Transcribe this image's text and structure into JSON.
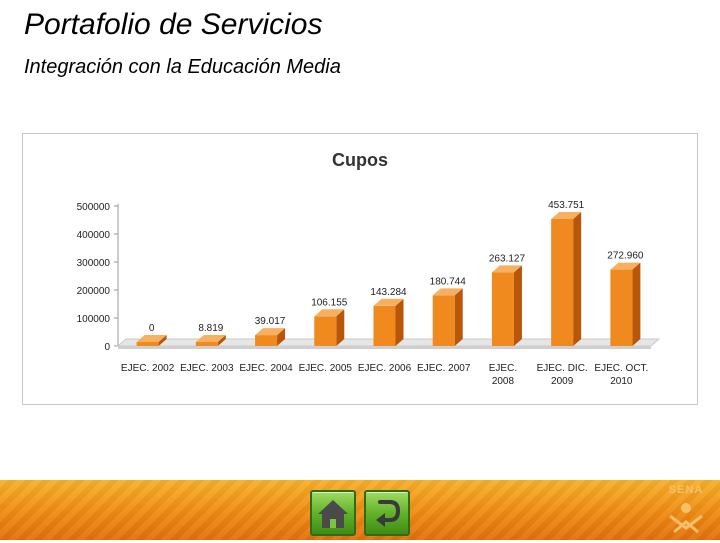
{
  "slide": {
    "title": "Portafolio de Servicios",
    "subtitle": "Integración con la Educación Media"
  },
  "logo": {
    "text": "SENA"
  },
  "colors": {
    "bar": "#f08a1e",
    "bar_dark": "#b8560a",
    "bar_top": "#f7b060",
    "footer": "#ef8a12",
    "button": "#63b22a"
  },
  "chart_data": {
    "type": "bar",
    "title": "Cupos",
    "xlabel": "",
    "ylabel": "",
    "ylim": [
      0,
      500000
    ],
    "yticks": [
      "0",
      "100000",
      "200000",
      "300000",
      "400000",
      "500000"
    ],
    "categories": [
      [
        "EJEC. 2002"
      ],
      [
        "EJEC. 2003"
      ],
      [
        "EJEC. 2004"
      ],
      [
        "EJEC. 2005"
      ],
      [
        "EJEC. 2006"
      ],
      [
        "EJEC. 2007"
      ],
      [
        "EJEC.",
        "2008"
      ],
      [
        "EJEC. DIC.",
        "2009"
      ],
      [
        "EJEC. OCT.",
        "2010"
      ]
    ],
    "values": [
      0,
      8819,
      39017,
      106155,
      143284,
      180744,
      263127,
      453751,
      272960
    ],
    "value_labels": [
      "0",
      "8.819",
      "39.017",
      "106.155",
      "143.284",
      "180.744",
      "263.127",
      "453.751",
      "272.960"
    ],
    "grid": false,
    "legend": "none"
  }
}
